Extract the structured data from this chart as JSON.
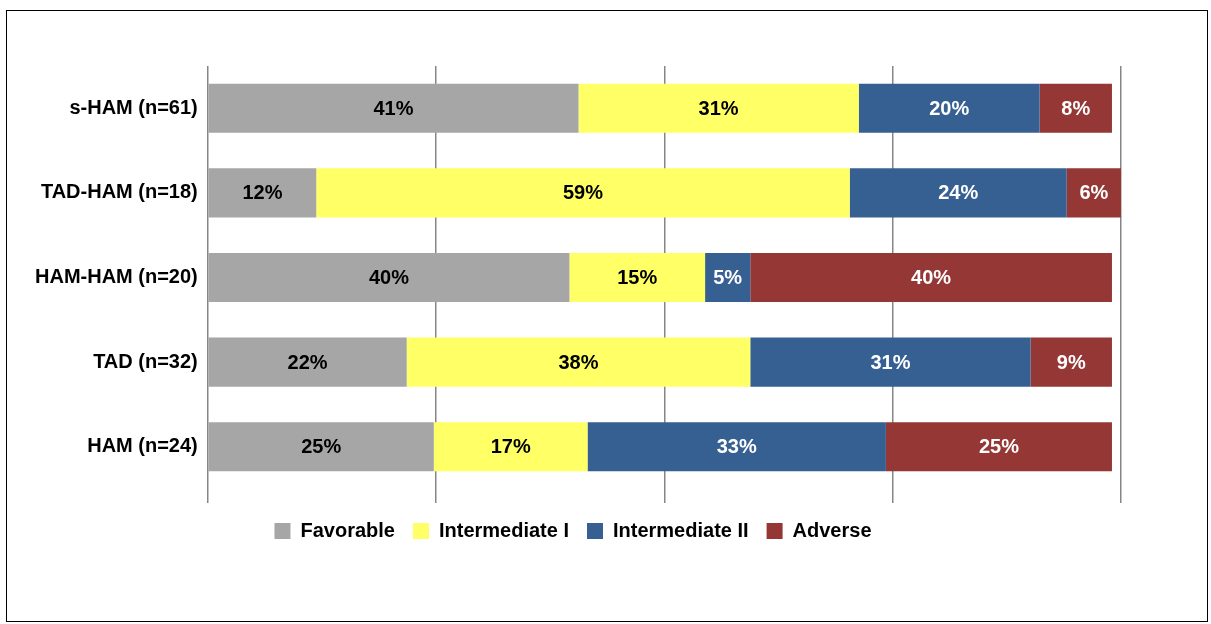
{
  "chart_data": {
    "type": "bar",
    "orientation": "horizontal",
    "stacked": true,
    "categories": [
      "s-HAM (n=61)",
      "TAD-HAM (n=18)",
      "HAM-HAM (n=20)",
      "TAD (n=32)",
      "HAM (n=24)"
    ],
    "series": [
      {
        "name": "Favorable",
        "color": "#a6a6a6",
        "values": [
          41,
          12,
          40,
          22,
          25
        ],
        "value_labels": [
          "41%",
          "12%",
          "40%",
          "22%",
          "25%"
        ]
      },
      {
        "name": "Intermediate I",
        "color": "#ffff66",
        "values": [
          31,
          59,
          15,
          38,
          17
        ],
        "value_labels": [
          "31%",
          "59%",
          "15%",
          "38%",
          "17%"
        ]
      },
      {
        "name": "Intermediate II",
        "color": "#376092",
        "values": [
          20,
          24,
          5,
          31,
          33
        ],
        "value_labels": [
          "20%",
          "24%",
          "5%",
          "31%",
          "33%"
        ]
      },
      {
        "name": "Adverse",
        "color": "#953735",
        "values": [
          8,
          6,
          40,
          9,
          25
        ],
        "value_labels": [
          "8%",
          "6%",
          "40%",
          "9%",
          "25%"
        ]
      }
    ],
    "tick_labels": "y",
    "grid": "x",
    "legend": "bottom"
  }
}
